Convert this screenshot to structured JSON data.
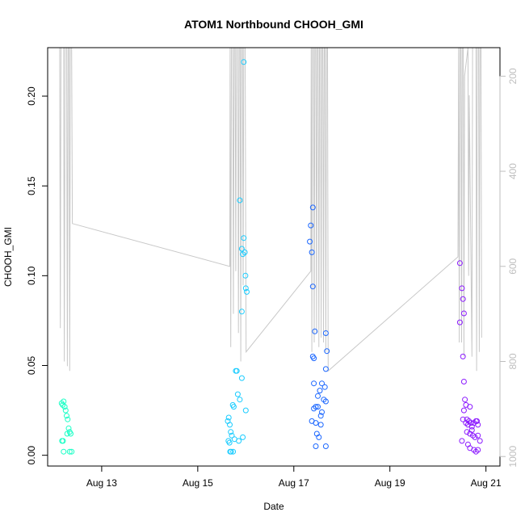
{
  "chart_data": {
    "type": "scatter",
    "title": "ATOM1 Northbound CHOOH_GMI",
    "xlabel": "Date",
    "ylabel": "CHOOH_GMI",
    "x_axis": {
      "type": "date",
      "range": [
        "2016-08-11T21:00",
        "2016-08-21T07:00"
      ],
      "tick_dates": [
        "2016-08-13",
        "2016-08-15",
        "2016-08-17",
        "2016-08-19",
        "2016-08-21"
      ],
      "tick_labels": [
        "Aug 13",
        "Aug 15",
        "Aug 17",
        "Aug 19",
        "Aug 21"
      ]
    },
    "y_axis": {
      "range": [
        -0.006,
        0.227
      ],
      "ticks": [
        0.0,
        0.05,
        0.1,
        0.15,
        0.2
      ],
      "tick_labels": [
        "0.00",
        "0.05",
        "0.10",
        "0.15",
        "0.20"
      ]
    },
    "right_axis": {
      "reversed": true,
      "color": "#bebebe",
      "range": [
        1020,
        140
      ],
      "ticks": [
        200,
        400,
        600,
        800,
        1000
      ],
      "tick_labels": [
        "200",
        "400",
        "600",
        "800",
        "1000"
      ]
    },
    "grid": false,
    "legend": "none",
    "series": [
      {
        "color": "#1AFFC6",
        "points": [
          [
            "2016-08-12T04:00",
            0.029
          ],
          [
            "2016-08-12T04:30",
            0.028
          ],
          [
            "2016-08-12T05:00",
            0.03
          ],
          [
            "2016-08-12T05:30",
            0.027
          ],
          [
            "2016-08-12T06:00",
            0.025
          ],
          [
            "2016-08-12T06:30",
            0.022
          ],
          [
            "2016-08-12T07:00",
            0.02
          ],
          [
            "2016-08-12T07:30",
            0.015
          ],
          [
            "2016-08-12T08:00",
            0.013
          ],
          [
            "2016-08-12T08:30",
            0.012
          ],
          [
            "2016-08-12T06:45",
            0.012
          ],
          [
            "2016-08-12T04:10",
            0.008
          ],
          [
            "2016-08-12T04:40",
            0.008
          ],
          [
            "2016-08-12T05:00",
            0.002
          ],
          [
            "2016-08-12T08:00",
            0.002
          ],
          [
            "2016-08-12T09:00",
            0.002
          ]
        ]
      },
      {
        "color": "#1ACCFF",
        "points": [
          [
            "2016-08-15T15:00",
            0.019
          ],
          [
            "2016-08-15T15:30",
            0.021
          ],
          [
            "2016-08-15T16:00",
            0.017
          ],
          [
            "2016-08-15T16:30",
            0.013
          ],
          [
            "2016-08-15T17:00",
            0.011
          ],
          [
            "2016-08-15T17:30",
            0.028
          ],
          [
            "2016-08-15T18:00",
            0.027
          ],
          [
            "2016-08-15T19:00",
            0.047
          ],
          [
            "2016-08-15T19:30",
            0.047
          ],
          [
            "2016-08-15T20:00",
            0.034
          ],
          [
            "2016-08-15T21:00",
            0.031
          ],
          [
            "2016-08-15T22:00",
            0.043
          ],
          [
            "2016-08-16T00:00",
            0.025
          ],
          [
            "2016-08-15T15:20",
            0.008
          ],
          [
            "2016-08-15T15:50",
            0.007
          ],
          [
            "2016-08-15T16:40",
            0.002
          ],
          [
            "2016-08-15T17:40",
            0.002
          ],
          [
            "2016-08-15T18:20",
            0.009
          ],
          [
            "2016-08-15T20:30",
            0.008
          ],
          [
            "2016-08-15T22:30",
            0.01
          ],
          [
            "2016-08-15T16:10",
            0.002
          ],
          [
            "2016-08-15T21:00",
            0.142
          ],
          [
            "2016-08-15T23:00",
            0.219
          ],
          [
            "2016-08-15T22:00",
            0.115
          ],
          [
            "2016-08-15T22:30",
            0.112
          ],
          [
            "2016-08-15T23:00",
            0.121
          ],
          [
            "2016-08-15T23:30",
            0.113
          ],
          [
            "2016-08-15T23:50",
            0.1
          ],
          [
            "2016-08-16T00:00",
            0.093
          ],
          [
            "2016-08-16T00:30",
            0.091
          ],
          [
            "2016-08-15T22:00",
            0.08
          ]
        ]
      },
      {
        "color": "#1A66FF",
        "points": [
          [
            "2016-08-17T09:30",
            0.138
          ],
          [
            "2016-08-17T08:30",
            0.128
          ],
          [
            "2016-08-17T08:00",
            0.119
          ],
          [
            "2016-08-17T09:00",
            0.113
          ],
          [
            "2016-08-17T09:30",
            0.094
          ],
          [
            "2016-08-17T10:30",
            0.069
          ],
          [
            "2016-08-17T16:00",
            0.068
          ],
          [
            "2016-08-17T16:30",
            0.058
          ],
          [
            "2016-08-17T10:00",
            0.054
          ],
          [
            "2016-08-17T09:30",
            0.055
          ],
          [
            "2016-08-17T16:00",
            0.048
          ],
          [
            "2016-08-17T10:00",
            0.04
          ],
          [
            "2016-08-17T14:00",
            0.04
          ],
          [
            "2016-08-17T15:30",
            0.038
          ],
          [
            "2016-08-17T13:00",
            0.036
          ],
          [
            "2016-08-17T12:00",
            0.033
          ],
          [
            "2016-08-17T15:00",
            0.031
          ],
          [
            "2016-08-17T16:00",
            0.03
          ],
          [
            "2016-08-17T11:00",
            0.027
          ],
          [
            "2016-08-17T12:00",
            0.027
          ],
          [
            "2016-08-17T14:00",
            0.024
          ],
          [
            "2016-08-17T13:30",
            0.022
          ],
          [
            "2016-08-17T09:00",
            0.019
          ],
          [
            "2016-08-17T11:00",
            0.018
          ],
          [
            "2016-08-17T13:30",
            0.017
          ],
          [
            "2016-08-17T11:30",
            0.012
          ],
          [
            "2016-08-17T12:30",
            0.01
          ],
          [
            "2016-08-17T11:00",
            0.005
          ],
          [
            "2016-08-17T16:00",
            0.005
          ],
          [
            "2016-08-17T10:00",
            0.026
          ]
        ]
      },
      {
        "color": "#8C1AFF",
        "points": [
          [
            "2016-08-20T11:00",
            0.107
          ],
          [
            "2016-08-20T12:00",
            0.093
          ],
          [
            "2016-08-20T12:30",
            0.087
          ],
          [
            "2016-08-20T13:00",
            0.079
          ],
          [
            "2016-08-20T11:00",
            0.074
          ],
          [
            "2016-08-20T12:30",
            0.055
          ],
          [
            "2016-08-20T13:00",
            0.041
          ],
          [
            "2016-08-20T13:30",
            0.031
          ],
          [
            "2016-08-20T14:00",
            0.028
          ],
          [
            "2016-08-20T13:00",
            0.025
          ],
          [
            "2016-08-20T16:00",
            0.027
          ],
          [
            "2016-08-20T12:30",
            0.02
          ],
          [
            "2016-08-20T14:00",
            0.018
          ],
          [
            "2016-08-20T15:00",
            0.017
          ],
          [
            "2016-08-20T15:30",
            0.019
          ],
          [
            "2016-08-20T16:30",
            0.018
          ],
          [
            "2016-08-20T17:00",
            0.016
          ],
          [
            "2016-08-20T18:00",
            0.018
          ],
          [
            "2016-08-20T19:00",
            0.019
          ],
          [
            "2016-08-20T20:00",
            0.017
          ],
          [
            "2016-08-20T14:30",
            0.013
          ],
          [
            "2016-08-20T16:00",
            0.012
          ],
          [
            "2016-08-20T17:30",
            0.011
          ],
          [
            "2016-08-20T18:30",
            0.01
          ],
          [
            "2016-08-20T20:00",
            0.011
          ],
          [
            "2016-08-20T21:00",
            0.008
          ],
          [
            "2016-08-20T12:00",
            0.008
          ],
          [
            "2016-08-20T15:00",
            0.006
          ],
          [
            "2016-08-20T16:00",
            0.004
          ],
          [
            "2016-08-20T18:00",
            0.003
          ],
          [
            "2016-08-20T20:00",
            0.003
          ],
          [
            "2016-08-20T19:00",
            0.002
          ],
          [
            "2016-08-20T14:30",
            0.02
          ],
          [
            "2016-08-20T19:30",
            0.019
          ],
          [
            "2016-08-20T17:00",
            0.014
          ]
        ]
      }
    ],
    "background_line": {
      "color": "#c8c8c8",
      "axis": "right",
      "points": [
        [
          "2016-08-12T03:00",
          140
        ],
        [
          "2016-08-12T03:20",
          730
        ],
        [
          "2016-08-12T03:40",
          140
        ],
        [
          "2016-08-12T05:00",
          140
        ],
        [
          "2016-08-12T05:20",
          800
        ],
        [
          "2016-08-12T05:40",
          140
        ],
        [
          "2016-08-12T06:30",
          140
        ],
        [
          "2016-08-12T06:50",
          810
        ],
        [
          "2016-08-12T07:10",
          140
        ],
        [
          "2016-08-12T07:40",
          140
        ],
        [
          "2016-08-12T08:00",
          820
        ],
        [
          "2016-08-12T08:20",
          140
        ],
        [
          "2016-08-12T09:00",
          140
        ],
        [
          "2016-08-12T09:20",
          510
        ],
        [
          "2016-08-15T16:00",
          600
        ],
        [
          "2016-08-15T16:10",
          140
        ],
        [
          "2016-08-15T16:30",
          770
        ],
        [
          "2016-08-15T16:50",
          140
        ],
        [
          "2016-08-15T17:30",
          140
        ],
        [
          "2016-08-15T17:50",
          700
        ],
        [
          "2016-08-15T18:10",
          140
        ],
        [
          "2016-08-15T18:40",
          140
        ],
        [
          "2016-08-15T19:00",
          610
        ],
        [
          "2016-08-15T19:20",
          140
        ],
        [
          "2016-08-15T20:00",
          140
        ],
        [
          "2016-08-15T20:20",
          740
        ],
        [
          "2016-08-15T20:40",
          140
        ],
        [
          "2016-08-15T21:10",
          140
        ],
        [
          "2016-08-15T21:30",
          800
        ],
        [
          "2016-08-15T21:50",
          140
        ],
        [
          "2016-08-15T22:20",
          140
        ],
        [
          "2016-08-15T22:40",
          640
        ],
        [
          "2016-08-15T23:00",
          140
        ],
        [
          "2016-08-15T23:40",
          140
        ],
        [
          "2016-08-16T00:10",
          780
        ],
        [
          "2016-08-17T08:30",
          610
        ],
        [
          "2016-08-17T08:40",
          140
        ],
        [
          "2016-08-17T09:00",
          780
        ],
        [
          "2016-08-17T09:20",
          140
        ],
        [
          "2016-08-17T09:50",
          140
        ],
        [
          "2016-08-17T10:10",
          760
        ],
        [
          "2016-08-17T10:30",
          140
        ],
        [
          "2016-08-17T11:00",
          140
        ],
        [
          "2016-08-17T11:20",
          740
        ],
        [
          "2016-08-17T11:40",
          140
        ],
        [
          "2016-08-17T12:10",
          140
        ],
        [
          "2016-08-17T12:30",
          770
        ],
        [
          "2016-08-17T12:50",
          140
        ],
        [
          "2016-08-17T13:20",
          140
        ],
        [
          "2016-08-17T13:40",
          750
        ],
        [
          "2016-08-17T14:00",
          140
        ],
        [
          "2016-08-17T14:30",
          140
        ],
        [
          "2016-08-17T14:50",
          760
        ],
        [
          "2016-08-17T15:10",
          140
        ],
        [
          "2016-08-17T15:40",
          140
        ],
        [
          "2016-08-17T16:00",
          780
        ],
        [
          "2016-08-17T16:20",
          140
        ],
        [
          "2016-08-17T16:50",
          140
        ],
        [
          "2016-08-17T17:10",
          820
        ],
        [
          "2016-08-20T10:00",
          580
        ],
        [
          "2016-08-20T10:20",
          140
        ],
        [
          "2016-08-20T10:40",
          760
        ],
        [
          "2016-08-20T11:00",
          140
        ],
        [
          "2016-08-20T11:30",
          140
        ],
        [
          "2016-08-20T11:50",
          760
        ],
        [
          "2016-08-20T12:10",
          140
        ],
        [
          "2016-08-20T12:40",
          140
        ],
        [
          "2016-08-20T13:00",
          790
        ],
        [
          "2016-08-20T13:20",
          200
        ],
        [
          "2016-08-20T15:00",
          140
        ],
        [
          "2016-08-20T15:20",
          620
        ],
        [
          "2016-08-20T15:40",
          240
        ],
        [
          "2016-08-20T17:00",
          790
        ],
        [
          "2016-08-20T17:20",
          140
        ],
        [
          "2016-08-20T19:00",
          140
        ],
        [
          "2016-08-20T19:20",
          820
        ],
        [
          "2016-08-20T19:40",
          140
        ],
        [
          "2016-08-20T20:20",
          140
        ],
        [
          "2016-08-20T20:40",
          780
        ],
        [
          "2016-08-20T21:00",
          140
        ],
        [
          "2016-08-20T21:30",
          140
        ],
        [
          "2016-08-20T21:50",
          750
        ]
      ]
    }
  }
}
